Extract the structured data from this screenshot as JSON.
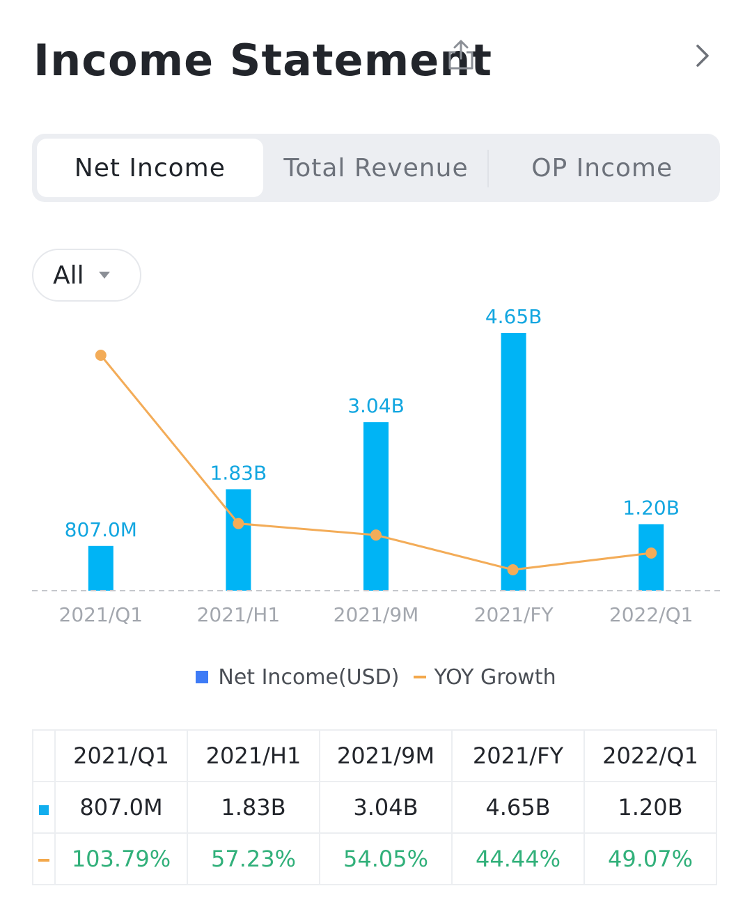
{
  "header": {
    "title": "Income Statement"
  },
  "tabs": [
    {
      "label": "Net Income",
      "active": true
    },
    {
      "label": "Total Revenue",
      "active": false
    },
    {
      "label": "OP Income",
      "active": false
    }
  ],
  "filter": {
    "label": "All"
  },
  "colors": {
    "bar": "#00B4F5",
    "bar_label": "#12A6E0",
    "line": "#F3AC58",
    "legend_bar": "#3E7BF6",
    "growth_text": "#31B07A",
    "axis_label": "#A3A7AE"
  },
  "chart_data": {
    "type": "bar",
    "categories": [
      "2021/Q1",
      "2021/H1",
      "2021/9M",
      "2021/FY",
      "2022/Q1"
    ],
    "series": [
      {
        "name": "Net Income(USD)",
        "type": "bar",
        "values": [
          0.807,
          1.83,
          3.04,
          4.65,
          1.2
        ],
        "unit": "B",
        "labels": [
          "807.0M",
          "1.83B",
          "3.04B",
          "4.65B",
          "1.20B"
        ]
      },
      {
        "name": "YOY Growth",
        "type": "line",
        "values": [
          103.79,
          57.23,
          54.05,
          44.44,
          49.07
        ],
        "unit": "%"
      }
    ],
    "legend": [
      "Net Income(USD)",
      "YOY Growth"
    ],
    "legend_position": "bottom",
    "grid": false
  },
  "table": {
    "headers": [
      "2021/Q1",
      "2021/H1",
      "2021/9M",
      "2021/FY",
      "2022/Q1"
    ],
    "net_income": [
      "807.0M",
      "1.83B",
      "3.04B",
      "4.65B",
      "1.20B"
    ],
    "yoy_growth": [
      "103.79%",
      "57.23%",
      "54.05%",
      "44.44%",
      "49.07%"
    ]
  }
}
